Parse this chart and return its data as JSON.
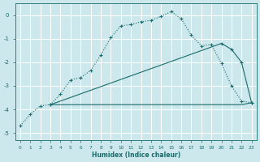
{
  "xlabel": "Humidex (Indice chaleur)",
  "bg_color": "#cce8ec",
  "grid_color": "#b0d8de",
  "line_color": "#1a6b6b",
  "xlim": [
    -0.5,
    23.5
  ],
  "ylim": [
    -5.3,
    0.5
  ],
  "yticks": [
    0,
    -1,
    -2,
    -3,
    -4,
    -5
  ],
  "xticks": [
    0,
    1,
    2,
    3,
    4,
    5,
    6,
    7,
    8,
    9,
    10,
    11,
    12,
    13,
    14,
    15,
    16,
    17,
    18,
    19,
    20,
    21,
    22,
    23
  ],
  "line1_x": [
    0,
    1,
    2,
    3,
    4,
    5,
    6,
    7,
    8,
    9,
    10,
    11,
    12,
    13,
    14,
    15,
    16,
    17,
    18,
    19,
    20,
    21,
    22,
    23
  ],
  "line1_y": [
    -4.7,
    -4.2,
    -3.85,
    -3.8,
    -3.35,
    -2.75,
    -2.65,
    -2.35,
    -1.7,
    -0.95,
    -0.45,
    -0.4,
    -0.28,
    -0.22,
    -0.05,
    0.15,
    -0.15,
    -0.85,
    -1.3,
    -1.25,
    -2.05,
    -3.0,
    -3.65,
    -3.72
  ],
  "line2_x": [
    3,
    10,
    22,
    23
  ],
  "line2_y": [
    -3.8,
    -3.8,
    -3.8,
    -3.72
  ],
  "line3_x": [
    3,
    20,
    21,
    22,
    23
  ],
  "line3_y": [
    -3.8,
    -1.2,
    -1.45,
    -2.0,
    -3.72
  ]
}
